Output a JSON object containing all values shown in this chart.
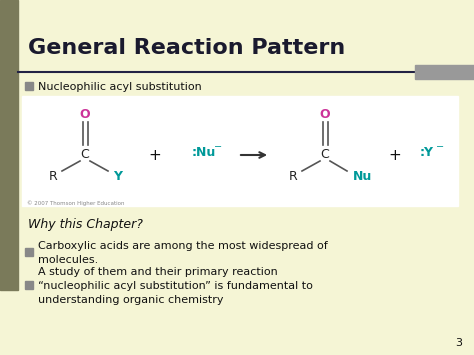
{
  "background_color": "#f5f5d5",
  "title": "General Reaction Pattern",
  "title_fontsize": 16,
  "title_color": "#1a1a2e",
  "bullet_color": "#888888",
  "bullet1": "Nucleophilic acyl substitution",
  "bullet_why": "Why this Chapter?",
  "bullet2": "Carboxylic acids are among the most widespread of\nmolecules.",
  "bullet3": "A study of them and their primary reaction\n“nucleophilic acyl substitution” is fundamental to\nunderstanding organic chemistry",
  "page_num": "3",
  "rxn_box_color": "#ffffff",
  "O_color": "#cc3399",
  "C_color": "#222222",
  "R_color": "#222222",
  "Y_color": "#009999",
  "Nu_text_color": "#009999",
  "copyright_text": "© 2007 Thomson Higher Education",
  "line_color": "#555555",
  "left_bar_color": "#7a7a5a",
  "sep_line_color": "#222244",
  "gray_bar_color": "#999999"
}
